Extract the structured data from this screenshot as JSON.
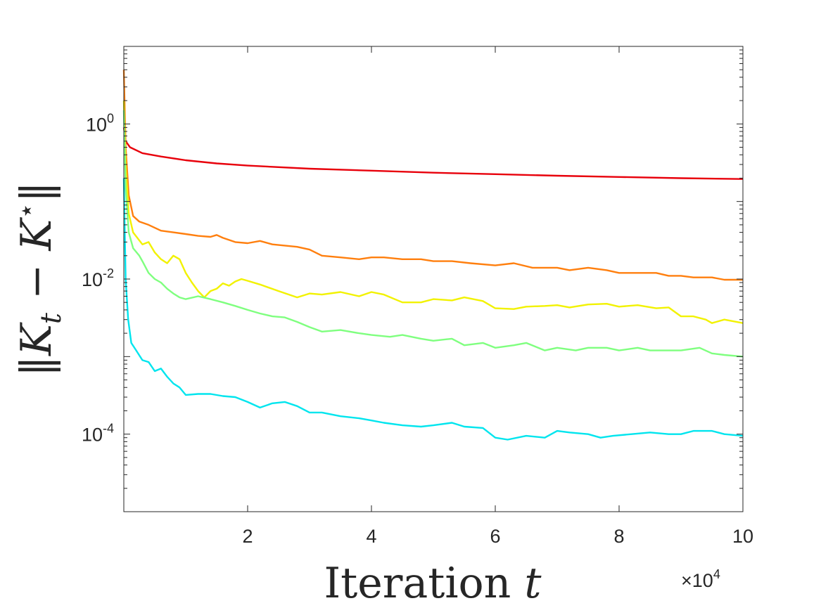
{
  "chart_data": {
    "type": "line",
    "xlabel_text": "Iteration",
    "xlabel_var": "t",
    "ylabel": "||K_t − K*||",
    "x_multiplier": "×10",
    "x_multiplier_exp": "4",
    "xlim": [
      0,
      100000
    ],
    "ylim": [
      1e-05,
      10
    ],
    "yscale": "log",
    "x_ticks": [
      20000,
      40000,
      60000,
      80000,
      100000
    ],
    "x_tick_labels": [
      "2",
      "4",
      "6",
      "8",
      "10"
    ],
    "y_ticks": [
      1,
      0.01,
      0.0001
    ],
    "y_tick_base": "10",
    "y_tick_exps": [
      "0",
      "-2",
      "-4"
    ],
    "grid": false,
    "series": [
      {
        "color": "#e8000b",
        "points": [
          [
            0,
            0.9
          ],
          [
            300,
            0.6
          ],
          [
            1000,
            0.5
          ],
          [
            3000,
            0.42
          ],
          [
            6000,
            0.38
          ],
          [
            10000,
            0.34
          ],
          [
            15000,
            0.31
          ],
          [
            20000,
            0.29
          ],
          [
            30000,
            0.265
          ],
          [
            40000,
            0.25
          ],
          [
            50000,
            0.235
          ],
          [
            60000,
            0.225
          ],
          [
            70000,
            0.215
          ],
          [
            80000,
            0.207
          ],
          [
            90000,
            0.2
          ],
          [
            100000,
            0.195
          ]
        ]
      },
      {
        "color": "#ff7f0e",
        "points": [
          [
            0,
            5.0
          ],
          [
            300,
            0.5
          ],
          [
            800,
            0.12
          ],
          [
            1500,
            0.065
          ],
          [
            2500,
            0.055
          ],
          [
            4000,
            0.05
          ],
          [
            6000,
            0.042
          ],
          [
            8000,
            0.04
          ],
          [
            10000,
            0.038
          ],
          [
            12000,
            0.036
          ],
          [
            14000,
            0.035
          ],
          [
            15000,
            0.037
          ],
          [
            16000,
            0.034
          ],
          [
            18000,
            0.03
          ],
          [
            20000,
            0.029
          ],
          [
            22000,
            0.031
          ],
          [
            24000,
            0.028
          ],
          [
            26000,
            0.027
          ],
          [
            28000,
            0.026
          ],
          [
            30000,
            0.024
          ],
          [
            32000,
            0.02
          ],
          [
            35000,
            0.019
          ],
          [
            38000,
            0.018
          ],
          [
            40000,
            0.019
          ],
          [
            42000,
            0.019
          ],
          [
            45000,
            0.018
          ],
          [
            48000,
            0.018
          ],
          [
            50000,
            0.017
          ],
          [
            53000,
            0.017
          ],
          [
            56000,
            0.016
          ],
          [
            60000,
            0.015
          ],
          [
            63000,
            0.016
          ],
          [
            66000,
            0.014
          ],
          [
            70000,
            0.014
          ],
          [
            72000,
            0.013
          ],
          [
            75000,
            0.014
          ],
          [
            78000,
            0.013
          ],
          [
            80000,
            0.012
          ],
          [
            83000,
            0.012
          ],
          [
            86000,
            0.012
          ],
          [
            88000,
            0.011
          ],
          [
            90000,
            0.011
          ],
          [
            92000,
            0.0105
          ],
          [
            95000,
            0.0105
          ],
          [
            97000,
            0.0098
          ],
          [
            100000,
            0.0098
          ]
        ]
      },
      {
        "color": "#f2f200",
        "points": [
          [
            0,
            2.0
          ],
          [
            300,
            0.3
          ],
          [
            800,
            0.07
          ],
          [
            1500,
            0.04
          ],
          [
            3000,
            0.028
          ],
          [
            4000,
            0.03
          ],
          [
            5000,
            0.022
          ],
          [
            6000,
            0.018
          ],
          [
            7000,
            0.016
          ],
          [
            8000,
            0.02
          ],
          [
            9000,
            0.018
          ],
          [
            10000,
            0.012
          ],
          [
            11000,
            0.009
          ],
          [
            12000,
            0.007
          ],
          [
            13000,
            0.0058
          ],
          [
            14000,
            0.007
          ],
          [
            15000,
            0.0075
          ],
          [
            16000,
            0.0088
          ],
          [
            17000,
            0.0082
          ],
          [
            18000,
            0.0093
          ],
          [
            19000,
            0.01
          ],
          [
            20000,
            0.0095
          ],
          [
            22000,
            0.0085
          ],
          [
            25000,
            0.007
          ],
          [
            28000,
            0.0058
          ],
          [
            30000,
            0.0065
          ],
          [
            32000,
            0.0063
          ],
          [
            35000,
            0.0068
          ],
          [
            38000,
            0.006
          ],
          [
            40000,
            0.0068
          ],
          [
            42000,
            0.0063
          ],
          [
            45000,
            0.005
          ],
          [
            48000,
            0.005
          ],
          [
            50000,
            0.0055
          ],
          [
            53000,
            0.0053
          ],
          [
            55000,
            0.0058
          ],
          [
            58000,
            0.0052
          ],
          [
            60000,
            0.0042
          ],
          [
            63000,
            0.0041
          ],
          [
            65000,
            0.0044
          ],
          [
            68000,
            0.0045
          ],
          [
            70000,
            0.0046
          ],
          [
            72000,
            0.0043
          ],
          [
            75000,
            0.0047
          ],
          [
            78000,
            0.0048
          ],
          [
            80000,
            0.0044
          ],
          [
            83000,
            0.0046
          ],
          [
            86000,
            0.0042
          ],
          [
            88000,
            0.0043
          ],
          [
            90000,
            0.0033
          ],
          [
            92000,
            0.0033
          ],
          [
            94000,
            0.003
          ],
          [
            95000,
            0.0027
          ],
          [
            97000,
            0.003
          ],
          [
            100000,
            0.0027
          ]
        ]
      },
      {
        "color": "#7fff7f",
        "points": [
          [
            0,
            1.5
          ],
          [
            300,
            0.15
          ],
          [
            800,
            0.04
          ],
          [
            1500,
            0.025
          ],
          [
            2500,
            0.02
          ],
          [
            3000,
            0.017
          ],
          [
            4000,
            0.012
          ],
          [
            5000,
            0.01
          ],
          [
            6000,
            0.009
          ],
          [
            7000,
            0.0075
          ],
          [
            8000,
            0.0065
          ],
          [
            9000,
            0.0058
          ],
          [
            10000,
            0.0055
          ],
          [
            12000,
            0.006
          ],
          [
            14000,
            0.0055
          ],
          [
            16000,
            0.005
          ],
          [
            18000,
            0.0045
          ],
          [
            20000,
            0.004
          ],
          [
            22000,
            0.0036
          ],
          [
            24000,
            0.0033
          ],
          [
            26000,
            0.0032
          ],
          [
            28000,
            0.0028
          ],
          [
            30000,
            0.0024
          ],
          [
            32000,
            0.0021
          ],
          [
            35000,
            0.0022
          ],
          [
            38000,
            0.002
          ],
          [
            40000,
            0.0019
          ],
          [
            43000,
            0.0018
          ],
          [
            45000,
            0.0019
          ],
          [
            48000,
            0.0017
          ],
          [
            50000,
            0.0016
          ],
          [
            53000,
            0.0017
          ],
          [
            55000,
            0.0014
          ],
          [
            58000,
            0.0015
          ],
          [
            60000,
            0.0013
          ],
          [
            63000,
            0.0014
          ],
          [
            65000,
            0.0015
          ],
          [
            68000,
            0.0012
          ],
          [
            70000,
            0.0013
          ],
          [
            73000,
            0.0012
          ],
          [
            75000,
            0.0013
          ],
          [
            78000,
            0.0013
          ],
          [
            80000,
            0.0012
          ],
          [
            83000,
            0.0013
          ],
          [
            85000,
            0.0012
          ],
          [
            88000,
            0.0012
          ],
          [
            90000,
            0.0012
          ],
          [
            93000,
            0.0013
          ],
          [
            95000,
            0.0011
          ],
          [
            97000,
            0.00105
          ],
          [
            100000,
            0.001
          ]
        ]
      },
      {
        "color": "#00e5ee",
        "points": [
          [
            0,
            0.2
          ],
          [
            300,
            0.01
          ],
          [
            700,
            0.003
          ],
          [
            1200,
            0.0015
          ],
          [
            2000,
            0.0012
          ],
          [
            3000,
            0.0009
          ],
          [
            4000,
            0.00085
          ],
          [
            5000,
            0.00065
          ],
          [
            6000,
            0.0007
          ],
          [
            7000,
            0.00055
          ],
          [
            8000,
            0.00045
          ],
          [
            9000,
            0.0004
          ],
          [
            10000,
            0.00032
          ],
          [
            12000,
            0.00033
          ],
          [
            14000,
            0.00033
          ],
          [
            16000,
            0.00031
          ],
          [
            18000,
            0.0003
          ],
          [
            20000,
            0.00026
          ],
          [
            22000,
            0.00022
          ],
          [
            24000,
            0.00025
          ],
          [
            26000,
            0.00026
          ],
          [
            28000,
            0.00023
          ],
          [
            30000,
            0.00019
          ],
          [
            32000,
            0.00019
          ],
          [
            35000,
            0.00017
          ],
          [
            38000,
            0.00016
          ],
          [
            40000,
            0.00015
          ],
          [
            42000,
            0.00014
          ],
          [
            45000,
            0.00013
          ],
          [
            48000,
            0.000125
          ],
          [
            50000,
            0.00013
          ],
          [
            53000,
            0.00014
          ],
          [
            55000,
            0.000125
          ],
          [
            58000,
            0.00012
          ],
          [
            60000,
            9e-05
          ],
          [
            62000,
            8.5e-05
          ],
          [
            65000,
            9.5e-05
          ],
          [
            68000,
            9e-05
          ],
          [
            70000,
            0.00011
          ],
          [
            72000,
            0.000105
          ],
          [
            75000,
            0.0001
          ],
          [
            77000,
            9e-05
          ],
          [
            79000,
            9.5e-05
          ],
          [
            82000,
            0.0001
          ],
          [
            85000,
            0.000105
          ],
          [
            88000,
            0.0001
          ],
          [
            90000,
            0.0001
          ],
          [
            92000,
            0.00011
          ],
          [
            95000,
            0.00011
          ],
          [
            97000,
            0.0001
          ],
          [
            100000,
            9.5e-05
          ]
        ]
      }
    ]
  }
}
